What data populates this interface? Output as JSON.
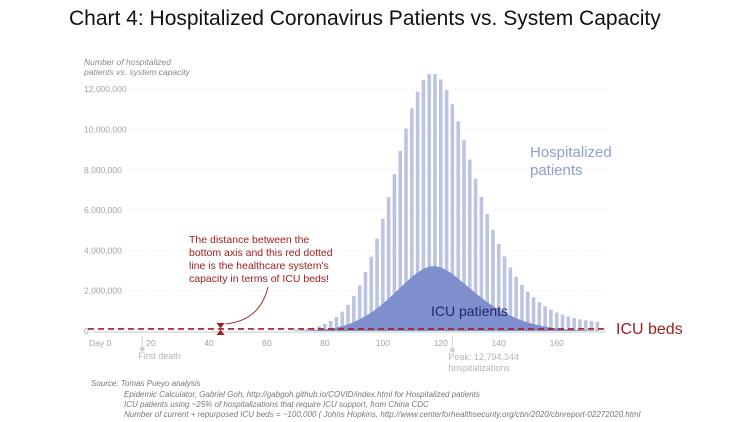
{
  "chart_data": {
    "type": "bar",
    "title": "Chart 4: Hospitalized Coronavirus Patients vs. System Capacity",
    "ylabel": "Number of hospitalized patients vs. system capacity",
    "ylabel_lines": [
      "Number of hospitalized",
      "patients vs. system capacity"
    ],
    "xlabel": "",
    "x_ticks": [
      "Day 0",
      "20",
      "40",
      "60",
      "80",
      "100",
      "120",
      "140",
      "160"
    ],
    "x_tick_values": [
      0,
      20,
      40,
      60,
      80,
      100,
      120,
      140,
      160
    ],
    "y_ticks": [
      "0",
      "2,000,000",
      "4,000,000",
      "6,000,000",
      "8,000,000",
      "10,000,000",
      "12,000,000"
    ],
    "y_tick_values": [
      0,
      2000000,
      4000000,
      6000000,
      8000000,
      10000000,
      12000000
    ],
    "xlim": [
      0,
      177
    ],
    "ylim": [
      0,
      13000000
    ],
    "series": [
      {
        "name": "Hospitalized patients",
        "label_lines": [
          "Hospitalized",
          "patients"
        ],
        "color": "#bcc4e2",
        "x": [
          70,
          72,
          74,
          76,
          78,
          80,
          82,
          84,
          86,
          88,
          90,
          92,
          94,
          96,
          98,
          100,
          102,
          104,
          106,
          108,
          110,
          112,
          114,
          116,
          118,
          120,
          122,
          124,
          126,
          128,
          130,
          132,
          134,
          136,
          138,
          140,
          142,
          144,
          146,
          148,
          150,
          152,
          154,
          156,
          158,
          160,
          162,
          164,
          166,
          168,
          170,
          172,
          174
        ],
        "values": [
          50000,
          75000,
          110000,
          165000,
          240000,
          350000,
          500000,
          700000,
          960000,
          1300000,
          1730000,
          2270000,
          2920000,
          3690000,
          4580000,
          5570000,
          6650000,
          7790000,
          8940000,
          10050000,
          11050000,
          11880000,
          12460000,
          12750000,
          12750000,
          12480000,
          11960000,
          11250000,
          10400000,
          9470000,
          8510000,
          7560000,
          6650000,
          5800000,
          5020000,
          4320000,
          3700000,
          3160000,
          2690000,
          2290000,
          1950000,
          1670000,
          1430000,
          1230000,
          1060000,
          920000,
          810000,
          720000,
          640000,
          580000,
          530000,
          490000,
          450000
        ]
      },
      {
        "name": "ICU patients",
        "color": "#7f8fcd",
        "x": [
          70,
          72,
          74,
          76,
          78,
          80,
          82,
          84,
          86,
          88,
          90,
          92,
          94,
          96,
          98,
          100,
          102,
          104,
          106,
          108,
          110,
          112,
          114,
          116,
          118,
          120,
          122,
          124,
          126,
          128,
          130,
          132,
          134,
          136,
          138,
          140,
          142,
          144,
          146,
          148,
          150,
          152,
          154,
          156,
          158,
          160,
          162,
          164,
          166,
          168,
          170,
          172,
          174
        ],
        "values": [
          10000,
          15000,
          25000,
          40000,
          60000,
          85000,
          120000,
          170000,
          240000,
          330000,
          440000,
          580000,
          740000,
          920000,
          1120000,
          1350000,
          1600000,
          1870000,
          2150000,
          2420000,
          2680000,
          2900000,
          3080000,
          3200000,
          3220000,
          3160000,
          3020000,
          2830000,
          2600000,
          2360000,
          2120000,
          1880000,
          1650000,
          1440000,
          1240000,
          1060000,
          900000,
          760000,
          630000,
          520000,
          430000,
          350000,
          280000,
          220000,
          170000,
          130000,
          100000,
          75000,
          55000,
          40000,
          30000,
          20000,
          15000
        ]
      }
    ],
    "reference_line": {
      "name": "ICU beds",
      "value": 100000,
      "color": "#a01e1e"
    },
    "annotations": {
      "icu_text_lines": [
        "The distance between the",
        "bottom axis and this red dotted",
        "line is the healthcare system's",
        "capacity in terms of ICU beds!"
      ],
      "icu_marker_day": 44,
      "first_death": {
        "label": "First death",
        "day": 17
      },
      "peak": {
        "label_lines": [
          "Peak: 12,794,344",
          "hospitalizations"
        ],
        "day": 124
      }
    },
    "source_lines": [
      "Source: Tomas Pueyo analysis",
      "Epidemic Calculator, Gabriel Goh, http://gabgoh.github.io/COVID/index.html for Hospitalized patients",
      "ICU patients using ~25% of hospitalizations that require ICU support, from China CDC",
      "Number of current + repurposed ICU beds = ~100,000 ( Johns Hopkins, http://www.centerforhealthsecurity.org/cbn/2020/cbnreport-02272020.html"
    ]
  }
}
